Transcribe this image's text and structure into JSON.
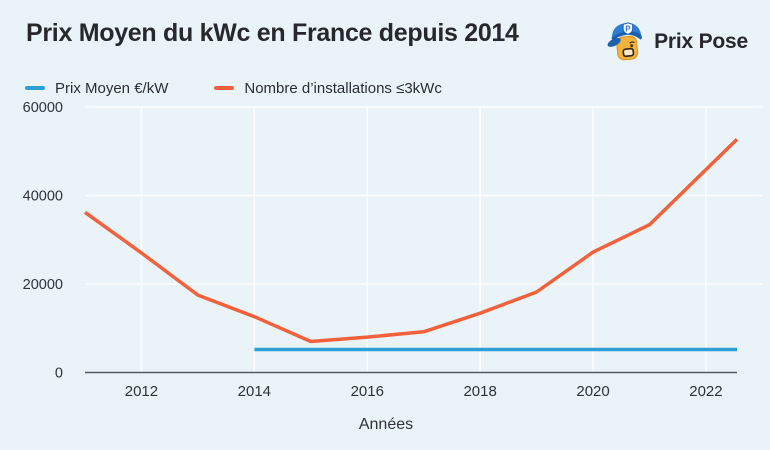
{
  "title": "Prix Moyen du kWc en France depuis 2014",
  "brand": {
    "name": "Prix Pose",
    "badge_letter": "P"
  },
  "colors": {
    "background": "#eaf4f8",
    "accent_blue": "#2e9fd6",
    "accent_orange": "#f2613c",
    "gridline": "#fbfdfe",
    "axis_line": "#55585c",
    "text": "#26282b"
  },
  "chart_data": {
    "type": "line",
    "title": "Prix Moyen du kWc en France depuis 2014",
    "xlabel": "Années",
    "ylabel": "",
    "xlim": [
      2011,
      2022.55
    ],
    "ylim": [
      0,
      60000
    ],
    "x_ticks": [
      2012,
      2014,
      2016,
      2018,
      2020,
      2022
    ],
    "y_ticks": [
      0,
      20000,
      40000,
      60000
    ],
    "grid": true,
    "legend_position": "top-left",
    "series": [
      {
        "name": "Prix Moyen €/kW",
        "color": "#2e9fd6",
        "points": [
          [
            2014,
            5200
          ],
          [
            2022.55,
            5200
          ]
        ]
      },
      {
        "name": "Nombre d’installations ≤3kWc",
        "color": "#f2613c",
        "points": [
          [
            2011,
            36200
          ],
          [
            2012,
            27000
          ],
          [
            2013,
            17500
          ],
          [
            2014,
            12600
          ],
          [
            2015,
            7000
          ],
          [
            2016,
            8000
          ],
          [
            2017,
            9200
          ],
          [
            2018,
            13400
          ],
          [
            2019,
            18200
          ],
          [
            2020,
            27200
          ],
          [
            2021,
            33400
          ],
          [
            2022.55,
            52700
          ]
        ]
      }
    ]
  }
}
